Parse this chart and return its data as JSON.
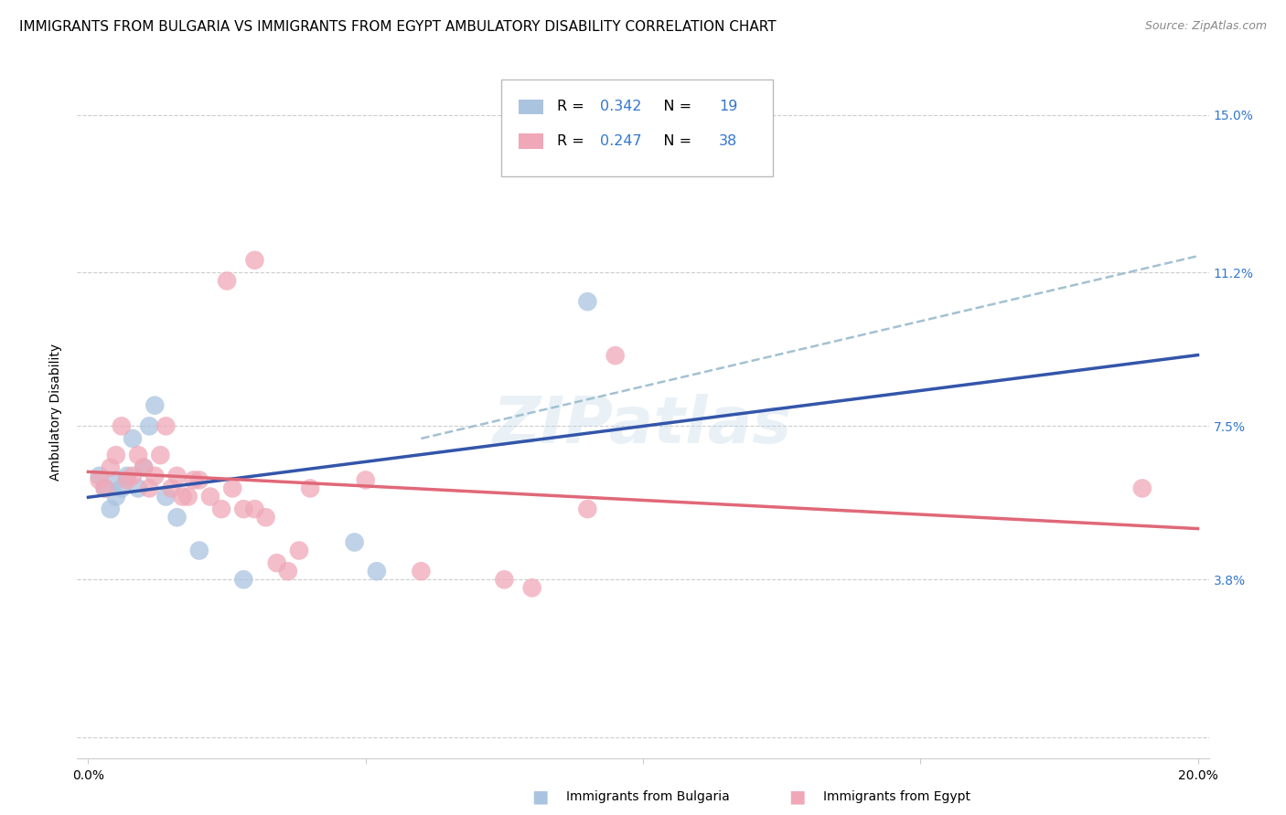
{
  "title": "IMMIGRANTS FROM BULGARIA VS IMMIGRANTS FROM EGYPT AMBULATORY DISABILITY CORRELATION CHART",
  "source": "Source: ZipAtlas.com",
  "ylabel": "Ambulatory Disability",
  "xlim": [
    -0.002,
    0.202
  ],
  "ylim": [
    -0.005,
    0.162
  ],
  "ytick_vals": [
    0.0,
    0.038,
    0.075,
    0.112,
    0.15
  ],
  "ytick_labels_right": [
    "",
    "3.8%",
    "7.5%",
    "11.2%",
    "15.0%"
  ],
  "xtick_vals": [
    0.0,
    0.05,
    0.1,
    0.15,
    0.2
  ],
  "xtick_labels": [
    "0.0%",
    "",
    "",
    "",
    "20.0%"
  ],
  "watermark": "ZIPatlas",
  "bulgaria_color": "#aac4e0",
  "egypt_color": "#f0a8b8",
  "bulgaria_line_color": "#3355aa",
  "egypt_line_color": "#e06878",
  "dashed_line_color": "#99bbcc",
  "R_bulgaria": 0.342,
  "N_bulgaria": 19,
  "R_egypt": 0.247,
  "N_egypt": 38,
  "bulgaria_x": [
    0.002,
    0.003,
    0.004,
    0.005,
    0.005,
    0.006,
    0.007,
    0.008,
    0.009,
    0.01,
    0.011,
    0.012,
    0.014,
    0.016,
    0.02,
    0.028,
    0.048,
    0.052,
    0.09
  ],
  "bulgaria_y": [
    0.063,
    0.06,
    0.055,
    0.062,
    0.058,
    0.06,
    0.063,
    0.072,
    0.06,
    0.065,
    0.075,
    0.08,
    0.058,
    0.053,
    0.045,
    0.038,
    0.047,
    0.04,
    0.105
  ],
  "egypt_x": [
    0.002,
    0.003,
    0.004,
    0.005,
    0.006,
    0.007,
    0.008,
    0.009,
    0.01,
    0.011,
    0.012,
    0.013,
    0.014,
    0.015,
    0.016,
    0.017,
    0.018,
    0.019,
    0.02,
    0.022,
    0.024,
    0.026,
    0.028,
    0.03,
    0.032,
    0.034,
    0.036,
    0.038,
    0.04,
    0.05,
    0.06,
    0.075,
    0.08,
    0.09,
    0.095,
    0.19,
    0.03,
    0.025
  ],
  "egypt_y": [
    0.062,
    0.06,
    0.065,
    0.068,
    0.075,
    0.062,
    0.063,
    0.068,
    0.065,
    0.06,
    0.063,
    0.068,
    0.075,
    0.06,
    0.063,
    0.058,
    0.058,
    0.062,
    0.062,
    0.058,
    0.055,
    0.06,
    0.055,
    0.055,
    0.053,
    0.042,
    0.04,
    0.045,
    0.06,
    0.062,
    0.04,
    0.038,
    0.036,
    0.055,
    0.092,
    0.06,
    0.115,
    0.11
  ],
  "bg_color": "#ffffff",
  "grid_color": "#cccccc",
  "title_fontsize": 11,
  "axis_label_fontsize": 10,
  "tick_fontsize": 10,
  "legend_fontsize": 11
}
